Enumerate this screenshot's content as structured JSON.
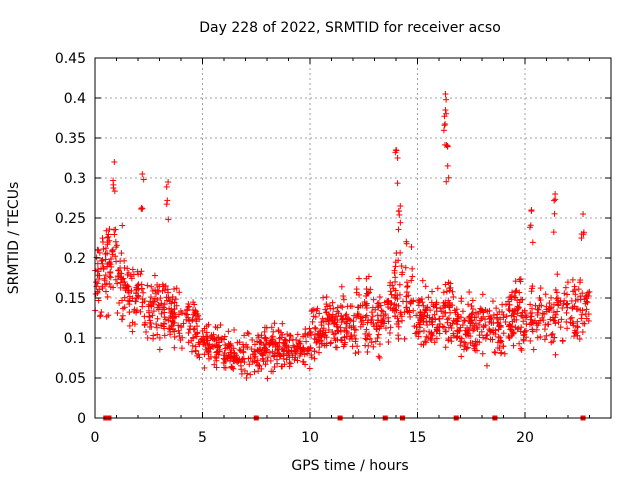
{
  "chart_data": {
    "type": "scatter",
    "title": "Day 228 of 2022, SRMTID for receiver acso",
    "xlabel": "GPS time / hours",
    "ylabel": "SRMTID / TECUs",
    "xlim": [
      0,
      24
    ],
    "ylim": [
      0,
      0.45
    ],
    "xticks": [
      0,
      5,
      10,
      15,
      20
    ],
    "xtick_labels": [
      "0",
      "5",
      "10",
      "15",
      "20"
    ],
    "yticks": [
      0,
      0.05,
      0.1,
      0.15,
      0.2,
      0.25,
      0.3,
      0.35,
      0.4,
      0.45
    ],
    "ytick_labels": [
      "0",
      "0.05",
      "0.1",
      "0.15",
      "0.2",
      "0.25",
      "0.3",
      "0.35",
      "0.4",
      "0.45"
    ],
    "grid": true,
    "marker": "+",
    "color": "#ff0000",
    "series": [
      {
        "name": "SRMTID",
        "description": "envelope of dense '+' scatter, sampled every ~0.5 h",
        "x": [
          0.0,
          0.5,
          1.0,
          1.5,
          2.0,
          2.5,
          3.0,
          3.5,
          4.0,
          4.5,
          5.0,
          5.5,
          6.0,
          6.5,
          7.0,
          7.5,
          8.0,
          8.5,
          9.0,
          9.5,
          10.0,
          10.5,
          11.0,
          11.5,
          12.0,
          12.5,
          13.0,
          13.5,
          14.0,
          14.5,
          15.0,
          15.5,
          16.0,
          16.5,
          17.0,
          17.5,
          18.0,
          18.5,
          19.0,
          19.5,
          20.0,
          20.5,
          21.0,
          21.5,
          22.0,
          22.5,
          23.0
        ],
        "center": [
          0.17,
          0.18,
          0.2,
          0.16,
          0.15,
          0.13,
          0.14,
          0.13,
          0.12,
          0.11,
          0.1,
          0.09,
          0.085,
          0.08,
          0.08,
          0.08,
          0.085,
          0.09,
          0.085,
          0.08,
          0.1,
          0.11,
          0.12,
          0.12,
          0.12,
          0.13,
          0.13,
          0.12,
          0.16,
          0.17,
          0.13,
          0.12,
          0.12,
          0.13,
          0.12,
          0.11,
          0.11,
          0.11,
          0.11,
          0.13,
          0.13,
          0.13,
          0.12,
          0.13,
          0.13,
          0.13,
          0.15
        ],
        "spread": [
          0.05,
          0.06,
          0.07,
          0.05,
          0.05,
          0.04,
          0.05,
          0.04,
          0.045,
          0.04,
          0.035,
          0.03,
          0.03,
          0.025,
          0.03,
          0.03,
          0.035,
          0.03,
          0.03,
          0.03,
          0.035,
          0.04,
          0.04,
          0.04,
          0.04,
          0.05,
          0.045,
          0.04,
          0.07,
          0.07,
          0.04,
          0.04,
          0.04,
          0.05,
          0.04,
          0.04,
          0.045,
          0.04,
          0.045,
          0.05,
          0.05,
          0.045,
          0.045,
          0.05,
          0.05,
          0.05,
          0.03
        ]
      }
    ],
    "peaks": [
      {
        "x": 0.9,
        "y": 0.32
      },
      {
        "x": 2.2,
        "y": 0.305
      },
      {
        "x": 3.4,
        "y": 0.295
      },
      {
        "x": 14.0,
        "y": 0.335
      },
      {
        "x": 14.2,
        "y": 0.265
      },
      {
        "x": 16.3,
        "y": 0.405
      },
      {
        "x": 16.3,
        "y": 0.385
      },
      {
        "x": 16.4,
        "y": 0.34
      },
      {
        "x": 20.3,
        "y": 0.26
      },
      {
        "x": 21.4,
        "y": 0.28
      },
      {
        "x": 22.7,
        "y": 0.255
      }
    ],
    "zero_markers_x": [
      0.5,
      0.65,
      7.5,
      11.4,
      13.5,
      14.3,
      16.8,
      18.6,
      22.7
    ]
  }
}
